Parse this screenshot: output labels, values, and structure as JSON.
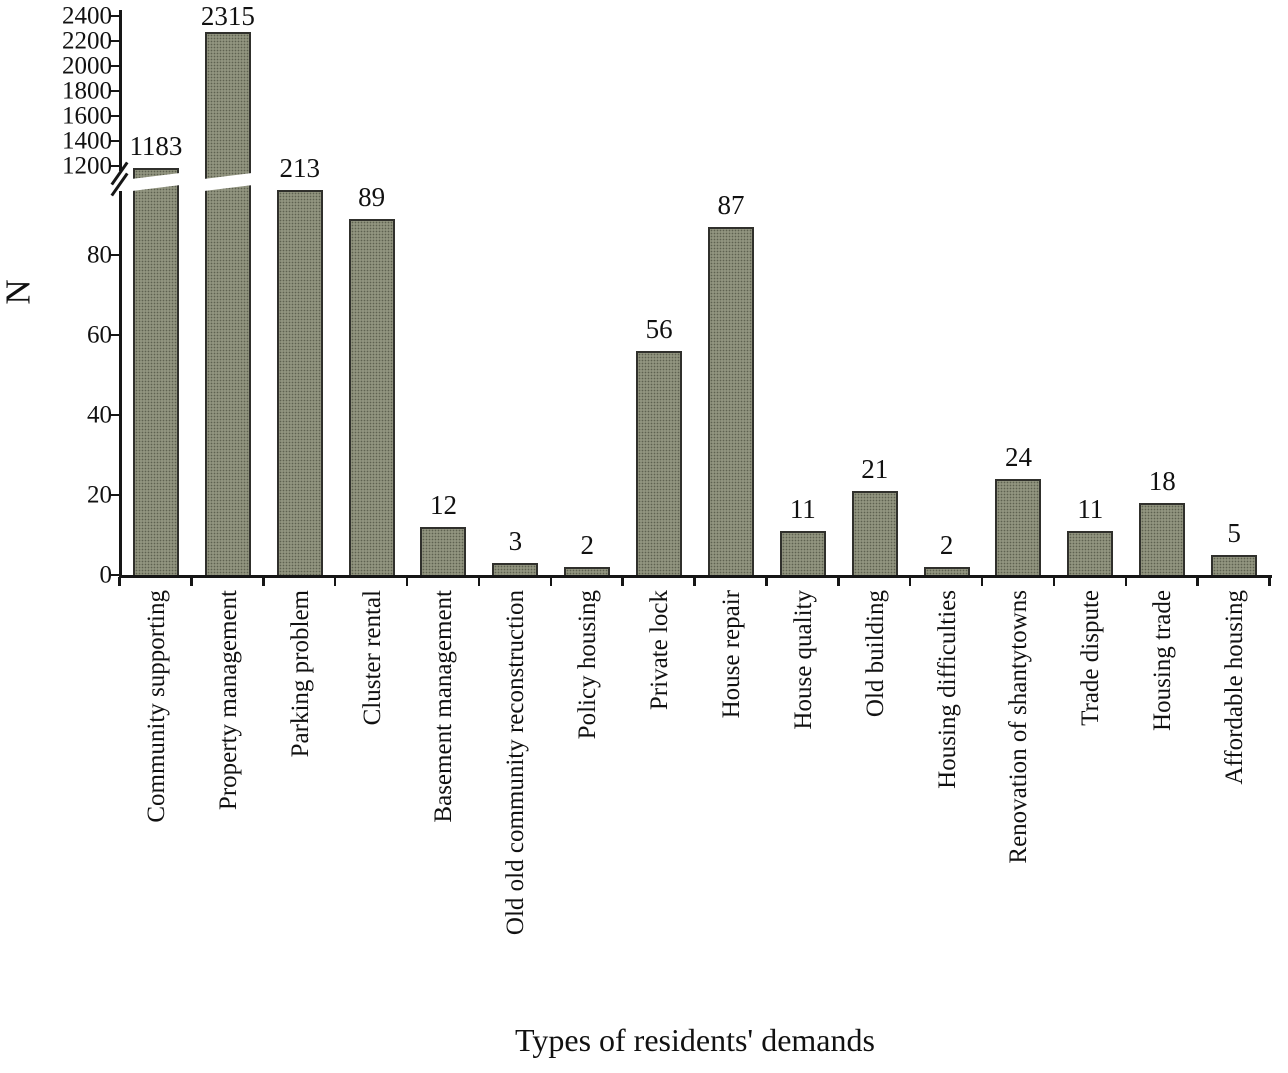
{
  "chart_data": {
    "type": "bar",
    "title": "",
    "xlabel": "Types of residents' demands",
    "ylabel": "N",
    "categories": [
      "Community supporting",
      "Property management",
      "Parking problem",
      "Cluster rental",
      "Basement management",
      "Old old community reconstruction",
      "Policy housing",
      "Private lock",
      "House repair",
      "House quality",
      "Old building",
      "Housing difficulties",
      "Renovation of shantytowns",
      "Trade dispute",
      "Housing trade",
      "Affordable housing"
    ],
    "values": [
      1183,
      2315,
      213,
      89,
      12,
      3,
      2,
      56,
      87,
      11,
      21,
      2,
      24,
      11,
      18,
      5
    ],
    "value_labels": [
      "1183",
      "2315",
      "213",
      "89",
      "12",
      "3",
      "2",
      "56",
      "87",
      "11",
      "21",
      "2",
      "24",
      "11",
      "18",
      "5"
    ],
    "y_axis": {
      "broken": true,
      "break_between": [
        100,
        1200
      ],
      "lower_ticks": [
        0,
        20,
        40,
        60,
        80
      ],
      "upper_ticks": [
        1200,
        1400,
        1600,
        1800,
        2000,
        2200,
        2400
      ],
      "ylim": [
        0,
        2400
      ]
    },
    "grid": false,
    "legend": false,
    "bar_color": "#91947f",
    "bar_border_color": "#30302c",
    "axis_color": "#161616"
  }
}
